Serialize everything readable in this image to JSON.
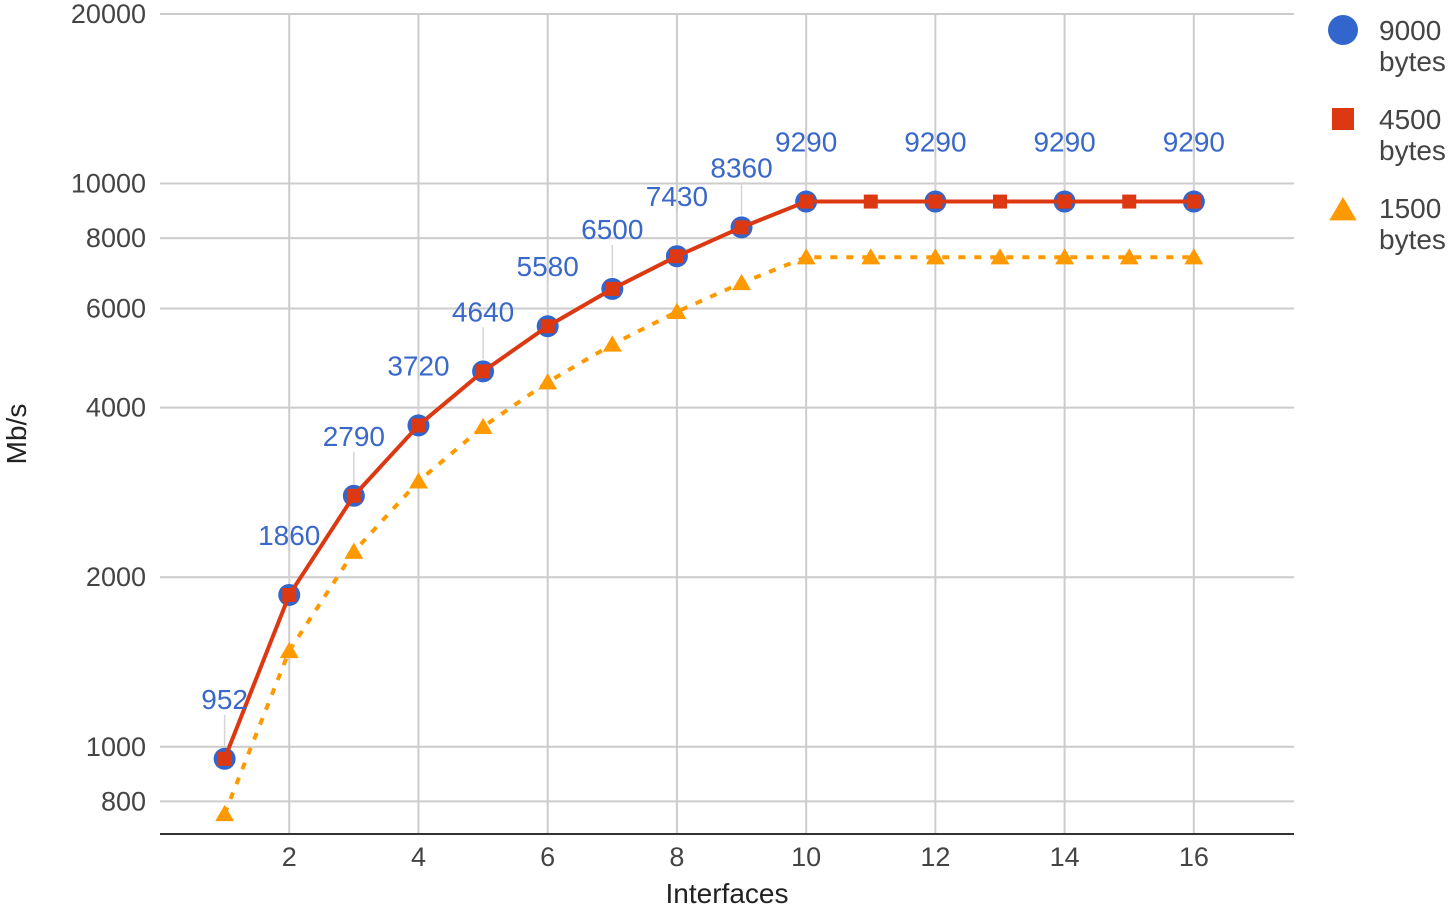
{
  "chart_data": {
    "type": "line",
    "xlabel": "Interfaces",
    "ylabel": "Mb/s",
    "x": [
      1,
      2,
      3,
      4,
      5,
      6,
      7,
      8,
      9,
      10,
      11,
      12,
      13,
      14,
      15,
      16
    ],
    "x_ticks": [
      "2",
      "4",
      "6",
      "8",
      "10",
      "12",
      "14",
      "16"
    ],
    "xlim": [
      0,
      17.55
    ],
    "y_scale": "log",
    "ylim": [
      700,
      20000
    ],
    "y_ticks": [
      "800",
      "1000",
      "2000",
      "4000",
      "6000",
      "8000",
      "10000",
      "20000"
    ],
    "grid": true,
    "legend_position": "right",
    "series": [
      {
        "name": "9000 bytes",
        "marker": "circle",
        "color": "#3366cc",
        "values": [
          952,
          1860,
          2790,
          3720,
          4640,
          5580,
          6500,
          7430,
          8360,
          9290,
          null,
          9290,
          null,
          9290,
          null,
          9290
        ],
        "data_labels": [
          "952",
          "1860",
          "2790",
          "3720",
          "4640",
          "5580",
          "6500",
          "7430",
          "8360",
          "9290",
          "",
          "9290",
          "",
          "9290",
          "",
          "9290"
        ]
      },
      {
        "name": "4500 bytes",
        "marker": "square",
        "color": "#dc3912",
        "values": [
          952,
          1860,
          2790,
          3720,
          4640,
          5580,
          6500,
          7430,
          8360,
          9290,
          9290,
          9290,
          9290,
          9290,
          9290,
          9290
        ]
      },
      {
        "name": "1500 bytes",
        "marker": "triangle",
        "color": "#ff9900",
        "values": [
          760,
          1480,
          2220,
          2960,
          3700,
          4440,
          5180,
          5920,
          6660,
          7400,
          7400,
          7400,
          7400,
          7400,
          7400,
          7400
        ]
      }
    ]
  }
}
